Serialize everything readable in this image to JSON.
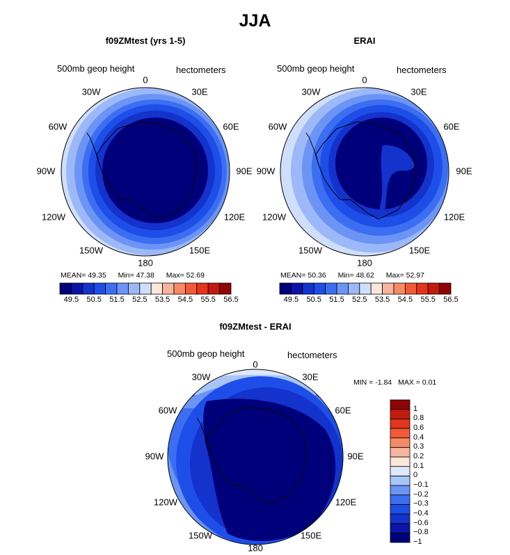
{
  "title": "JJA",
  "panels": {
    "model": {
      "title": "f09ZMtest (yrs 1-5)",
      "field": "500mb geop height",
      "units": "hectometers",
      "mean_label": "MEAN=",
      "mean": "49.35",
      "min_label": "Min=",
      "min": "47.38",
      "max_label": "Max=",
      "max": "52.69"
    },
    "obs": {
      "title": "ERAI",
      "field": "500mb geop height",
      "units": "hectometers",
      "mean_label": "MEAN=",
      "mean": "50.36",
      "min_label": "Min=",
      "min": "48.62",
      "max_label": "Max=",
      "max": "52.97"
    },
    "diff": {
      "title": "f09ZMtest - ERAI",
      "field": "500mb geop height",
      "units": "hectometers",
      "min_label": "MIN =",
      "min": "-1.84",
      "max_label": "MAX =",
      "max": "0.01"
    }
  },
  "longitude_labels": [
    "0",
    "30E",
    "60E",
    "90E",
    "120E",
    "150E",
    "180",
    "150W",
    "120W",
    "90W",
    "60W",
    "30W"
  ],
  "colorbar_abs": {
    "colors": [
      "#00007a",
      "#0a14a8",
      "#1432cc",
      "#1e4ee8",
      "#3c6ef2",
      "#6b94f5",
      "#9cb8f8",
      "#cfdffb",
      "#fde6da",
      "#f8b59d",
      "#f68a66",
      "#f25a38",
      "#e3341c",
      "#c21a0c",
      "#8f0404"
    ],
    "labels": [
      "49.5",
      "50.5",
      "51.5",
      "52.5",
      "53.5",
      "54.5",
      "55.5",
      "56.5"
    ]
  },
  "colorbar_diff": {
    "colors": [
      "#00007a",
      "#0a14a8",
      "#1432cc",
      "#1e4ee8",
      "#3c6ef2",
      "#6b94f5",
      "#a9c4f7",
      "#dde8fb",
      "#fde6da",
      "#f8b59d",
      "#f68a66",
      "#f25a38",
      "#e3341c",
      "#c21a0c",
      "#8f0404"
    ],
    "labels": [
      "1",
      "0.8",
      "0.6",
      "0.4",
      "0.3",
      "0.2",
      "0.1",
      "0",
      "−0.1",
      "−0.2",
      "−0.3",
      "−0.4",
      "−0.6",
      "−0.8",
      "−1"
    ]
  }
}
